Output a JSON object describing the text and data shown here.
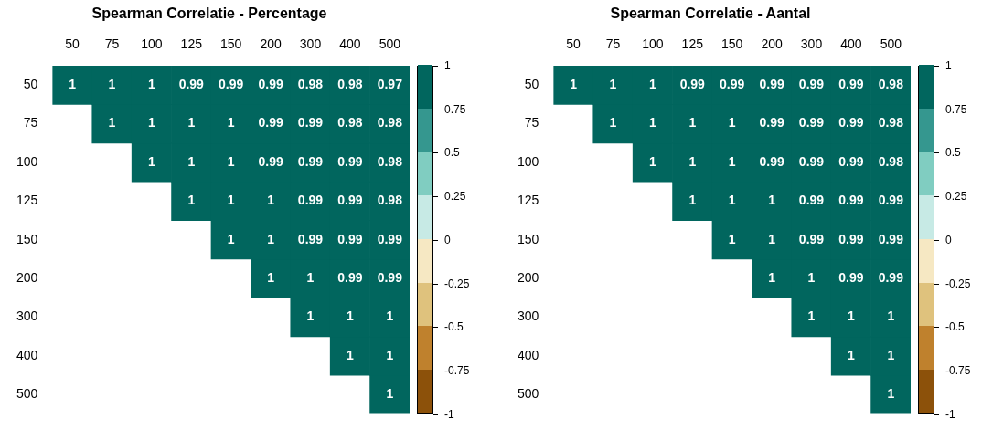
{
  "chart_data": [
    {
      "type": "heatmap",
      "title": "Spearman Correlatie - Percentage",
      "categories": [
        "50",
        "75",
        "100",
        "125",
        "150",
        "200",
        "300",
        "400",
        "500"
      ],
      "y_categories": [
        "50",
        "75",
        "100",
        "125",
        "150",
        "200",
        "300",
        "400",
        "500"
      ],
      "cells": [
        [
          1,
          1,
          1,
          0.99,
          0.99,
          0.99,
          0.98,
          0.98,
          0.97
        ],
        [
          null,
          1,
          1,
          1,
          1,
          0.99,
          0.99,
          0.98,
          0.98
        ],
        [
          null,
          null,
          1,
          1,
          1,
          0.99,
          0.99,
          0.99,
          0.98
        ],
        [
          null,
          null,
          null,
          1,
          1,
          1,
          0.99,
          0.99,
          0.98
        ],
        [
          null,
          null,
          null,
          null,
          1,
          1,
          0.99,
          0.99,
          0.99
        ],
        [
          null,
          null,
          null,
          null,
          null,
          1,
          1,
          0.99,
          0.99
        ],
        [
          null,
          null,
          null,
          null,
          null,
          null,
          1,
          1,
          1
        ],
        [
          null,
          null,
          null,
          null,
          null,
          null,
          null,
          1,
          1
        ],
        [
          null,
          null,
          null,
          null,
          null,
          null,
          null,
          null,
          1
        ]
      ],
      "data_labels": true,
      "clim": [
        -1,
        1
      ],
      "cticks": [
        -1,
        -0.75,
        -0.5,
        -0.25,
        0,
        0.25,
        0.5,
        0.75,
        1
      ],
      "colors": [
        "#8c510a",
        "#bf812d",
        "#dfc27d",
        "#f6e8c3",
        "#c7eae5",
        "#80cdc1",
        "#35978f",
        "#01665e"
      ]
    },
    {
      "type": "heatmap",
      "title": "Spearman Correlatie - Aantal",
      "categories": [
        "50",
        "75",
        "100",
        "125",
        "150",
        "200",
        "300",
        "400",
        "500"
      ],
      "y_categories": [
        "50",
        "75",
        "100",
        "125",
        "150",
        "200",
        "300",
        "400",
        "500"
      ],
      "cells": [
        [
          1,
          1,
          1,
          0.99,
          0.99,
          0.99,
          0.99,
          0.99,
          0.98
        ],
        [
          null,
          1,
          1,
          1,
          1,
          0.99,
          0.99,
          0.99,
          0.98
        ],
        [
          null,
          null,
          1,
          1,
          1,
          0.99,
          0.99,
          0.99,
          0.98
        ],
        [
          null,
          null,
          null,
          1,
          1,
          1,
          0.99,
          0.99,
          0.99
        ],
        [
          null,
          null,
          null,
          null,
          1,
          1,
          0.99,
          0.99,
          0.99
        ],
        [
          null,
          null,
          null,
          null,
          null,
          1,
          1,
          0.99,
          0.99
        ],
        [
          null,
          null,
          null,
          null,
          null,
          null,
          1,
          1,
          1
        ],
        [
          null,
          null,
          null,
          null,
          null,
          null,
          null,
          1,
          1
        ],
        [
          null,
          null,
          null,
          null,
          null,
          null,
          null,
          null,
          1
        ]
      ],
      "data_labels": true,
      "clim": [
        -1,
        1
      ],
      "cticks": [
        -1,
        -0.75,
        -0.5,
        -0.25,
        0,
        0.25,
        0.5,
        0.75,
        1
      ],
      "colors": [
        "#8c510a",
        "#bf812d",
        "#dfc27d",
        "#f6e8c3",
        "#c7eae5",
        "#80cdc1",
        "#35978f",
        "#01665e"
      ]
    }
  ]
}
